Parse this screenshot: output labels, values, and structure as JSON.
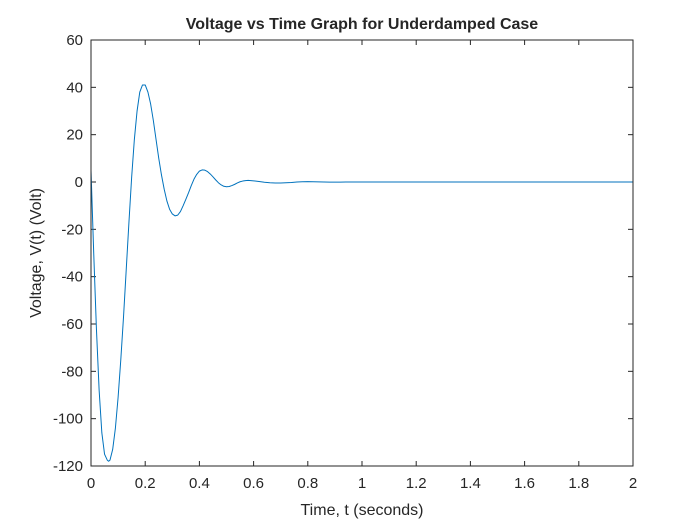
{
  "figure": {
    "background": "#ffffff",
    "axes_color": "#262626",
    "line_color": "#0072bd"
  },
  "chart_data": {
    "type": "line",
    "title": "Voltage vs Time Graph for Underdamped Case",
    "xlabel": "Time, t (seconds)",
    "ylabel": "Voltage, V(t) (Volt)",
    "xlim": [
      0,
      2
    ],
    "ylim": [
      -120,
      60
    ],
    "xticks": [
      0,
      0.2,
      0.4,
      0.6,
      0.8,
      1,
      1.2,
      1.4,
      1.6,
      1.8,
      2
    ],
    "xtick_labels": [
      "0",
      "0.2",
      "0.4",
      "0.6",
      "0.8",
      "1",
      "1.2",
      "1.4",
      "1.6",
      "1.8",
      "2"
    ],
    "yticks": [
      -120,
      -100,
      -80,
      -60,
      -40,
      -20,
      0,
      20,
      40,
      60
    ],
    "ytick_labels": [
      "-120",
      "-100",
      "-80",
      "-60",
      "-40",
      "-20",
      "0",
      "20",
      "40",
      "60"
    ],
    "grid": false,
    "box": true,
    "series": [
      {
        "color": "#0072bd",
        "x": [
          0,
          0.01,
          0.02,
          0.03,
          0.04,
          0.05,
          0.06,
          0.065,
          0.07,
          0.08,
          0.09,
          0.1,
          0.11,
          0.12,
          0.13,
          0.14,
          0.15,
          0.16,
          0.17,
          0.18,
          0.19,
          0.2,
          0.21,
          0.22,
          0.23,
          0.24,
          0.25,
          0.26,
          0.27,
          0.28,
          0.29,
          0.3,
          0.31,
          0.32,
          0.33,
          0.34,
          0.35,
          0.36,
          0.37,
          0.38,
          0.39,
          0.4,
          0.41,
          0.42,
          0.43,
          0.44,
          0.45,
          0.46,
          0.47,
          0.48,
          0.49,
          0.5,
          0.51,
          0.52,
          0.53,
          0.54,
          0.55,
          0.56,
          0.57,
          0.58,
          0.59,
          0.6,
          0.62,
          0.64,
          0.66,
          0.68,
          0.7,
          0.72,
          0.74,
          0.76,
          0.78,
          0.8,
          0.82,
          0.84,
          0.86,
          0.88,
          0.9,
          0.92,
          0.94,
          0.96,
          0.98,
          1,
          1.05,
          1.1,
          1.15,
          1.2,
          1.25,
          1.3,
          1.4,
          1.5,
          1.6,
          1.7,
          1.8,
          1.9,
          2
        ],
        "y": [
          5,
          -30,
          -62,
          -88,
          -106,
          -115,
          -117.5,
          -118,
          -117.5,
          -113,
          -104,
          -91,
          -75,
          -57,
          -37,
          -17,
          2,
          18,
          30,
          38,
          41,
          41,
          38,
          33,
          26,
          18,
          10,
          3,
          -3,
          -8,
          -11.5,
          -13.5,
          -14.3,
          -14,
          -12.5,
          -10,
          -7.3,
          -4.5,
          -1.5,
          1.2,
          3.2,
          4.6,
          5.1,
          5,
          4.4,
          3.4,
          2.2,
          0.9,
          -0.3,
          -1.2,
          -1.8,
          -2,
          -1.9,
          -1.5,
          -1,
          -0.4,
          0.1,
          0.4,
          0.6,
          0.7,
          0.6,
          0.5,
          0.2,
          -0.1,
          -0.3,
          -0.4,
          -0.4,
          -0.3,
          -0.2,
          0,
          0.1,
          0.15,
          0.1,
          0.05,
          0,
          -0.05,
          -0.05,
          -0.03,
          0,
          0.02,
          0.02,
          0,
          -0.01,
          0,
          0,
          0,
          0,
          0,
          0,
          0,
          0,
          0,
          0,
          0,
          0
        ]
      }
    ]
  }
}
